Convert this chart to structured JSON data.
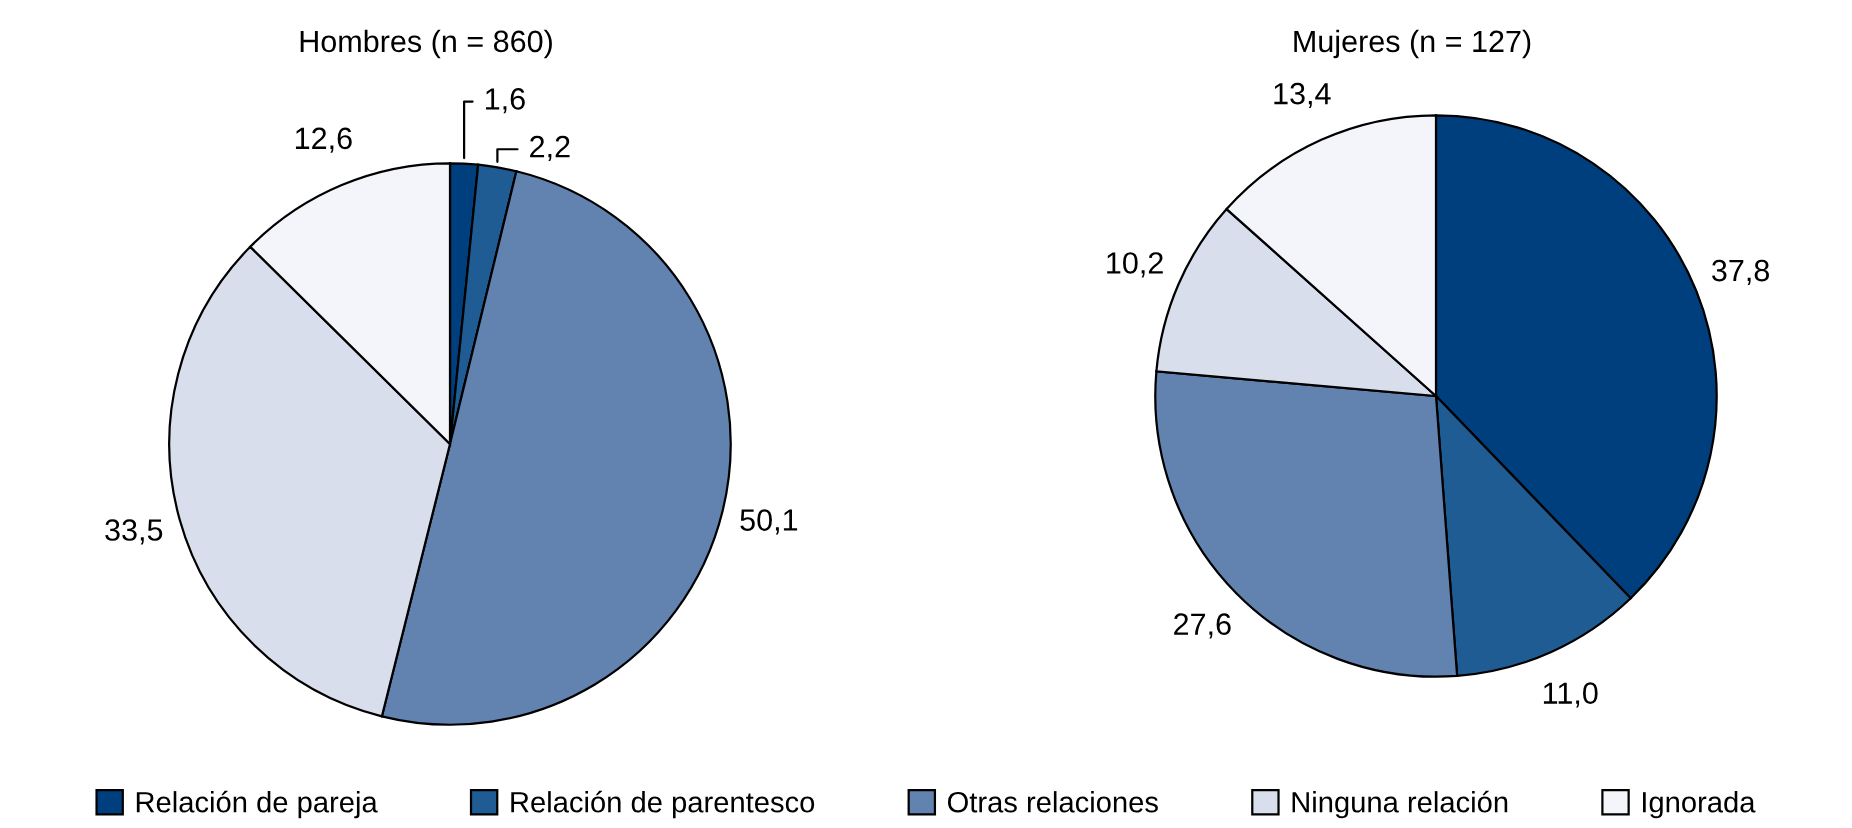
{
  "chart_data": [
    {
      "type": "pie",
      "title": "Hombres (n = 860)",
      "categories": [
        "Relación de pareja",
        "Relación de parentesco",
        "Otras relaciones",
        "Ninguna relación",
        "Ignorada"
      ],
      "values": [
        1.6,
        2.2,
        50.1,
        33.5,
        12.6
      ],
      "value_labels": [
        "1,6",
        "2,2",
        "50,1",
        "33,5",
        "12,6"
      ],
      "colors": [
        "#003f7d",
        "#1f5c94",
        "#6283b0",
        "#d9deec",
        "#f3f5fa"
      ],
      "legend": "bottom"
    },
    {
      "type": "pie",
      "title": "Mujeres (n = 127)",
      "values": [
        37.8,
        11.0,
        27.6,
        10.2,
        13.4
      ],
      "value_labels": [
        "37,8",
        "11,0",
        "27,6",
        "10,2",
        "13,4"
      ],
      "colors": [
        "#003f7d",
        "#1f5c94",
        "#6283b0",
        "#d9deec",
        "#f3f5fa"
      ]
    }
  ]
}
